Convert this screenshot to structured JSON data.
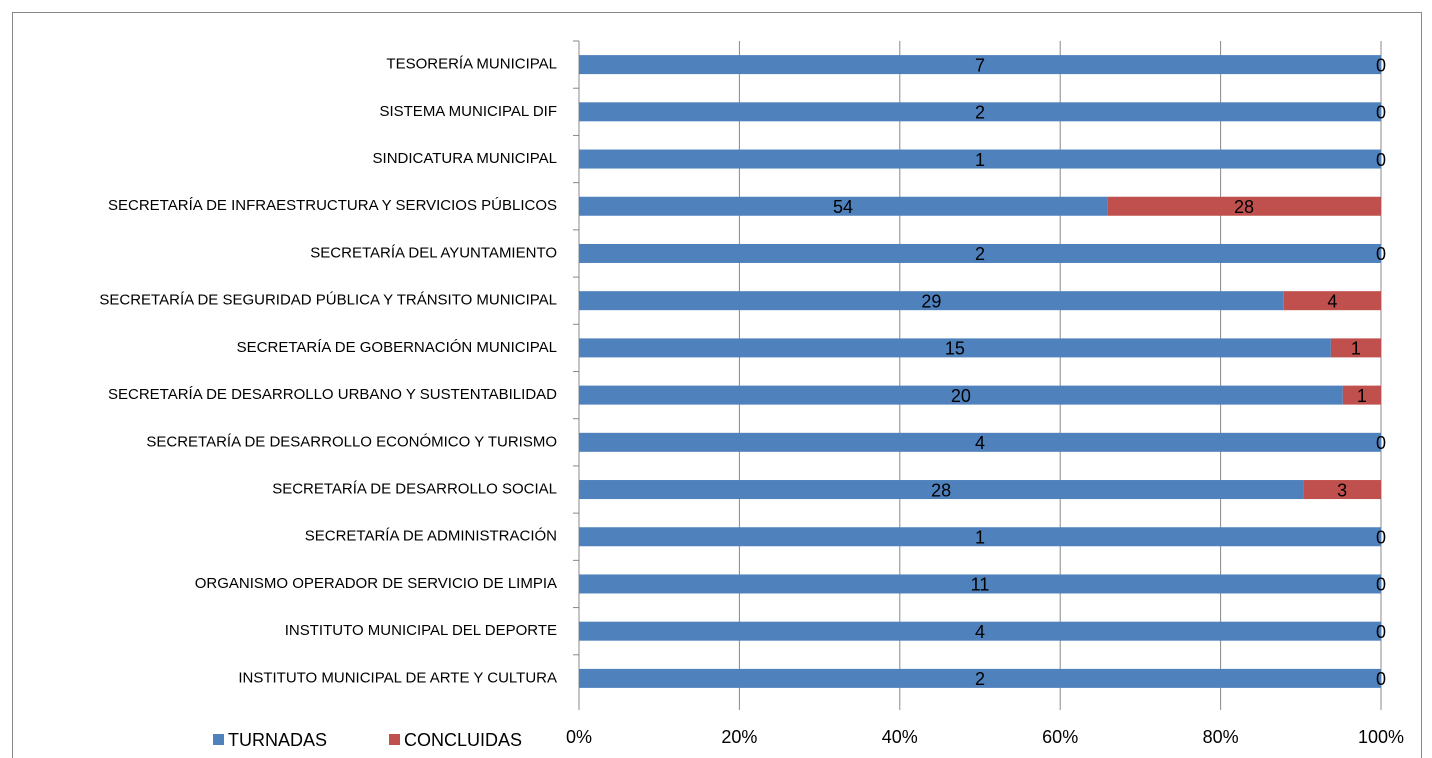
{
  "chart_data": {
    "type": "bar",
    "orientation": "horizontal",
    "stacking": "percent",
    "categories": [
      "TESORERÍA MUNICIPAL",
      "SISTEMA MUNICIPAL DIF",
      "SINDICATURA MUNICIPAL",
      "SECRETARÍA DE INFRAESTRUCTURA Y SERVICIOS PÚBLICOS",
      "SECRETARÍA DEL AYUNTAMIENTO",
      "SECRETARÍA DE SEGURIDAD PÚBLICA Y TRÁNSITO MUNICIPAL",
      "SECRETARÍA DE GOBERNACIÓN MUNICIPAL",
      "SECRETARÍA DE DESARROLLO URBANO Y SUSTENTABILIDAD",
      "SECRETARÍA DE DESARROLLO ECONÓMICO Y TURISMO",
      "SECRETARÍA DE DESARROLLO SOCIAL",
      "SECRETARÍA DE ADMINISTRACIÓN",
      "ORGANISMO OPERADOR DE SERVICIO DE LIMPIA",
      "INSTITUTO MUNICIPAL DEL DEPORTE",
      "INSTITUTO MUNICIPAL DE ARTE Y CULTURA"
    ],
    "series": [
      {
        "name": "TURNADAS",
        "color": "#4f81bd",
        "values": [
          7,
          2,
          1,
          54,
          2,
          29,
          15,
          20,
          4,
          28,
          1,
          11,
          4,
          2
        ]
      },
      {
        "name": "CONCLUIDAS",
        "color": "#c0504d",
        "values": [
          0,
          0,
          0,
          28,
          0,
          4,
          1,
          1,
          0,
          3,
          0,
          0,
          0,
          0
        ]
      }
    ],
    "xlim": [
      0,
      100
    ],
    "xticks": [
      {
        "value": 0,
        "label": "0%"
      },
      {
        "value": 20,
        "label": "20%"
      },
      {
        "value": 40,
        "label": "40%"
      },
      {
        "value": 60,
        "label": "60%"
      },
      {
        "value": 80,
        "label": "80%"
      },
      {
        "value": 100,
        "label": "100%"
      }
    ],
    "grid": true,
    "legend": "bottom-left"
  }
}
